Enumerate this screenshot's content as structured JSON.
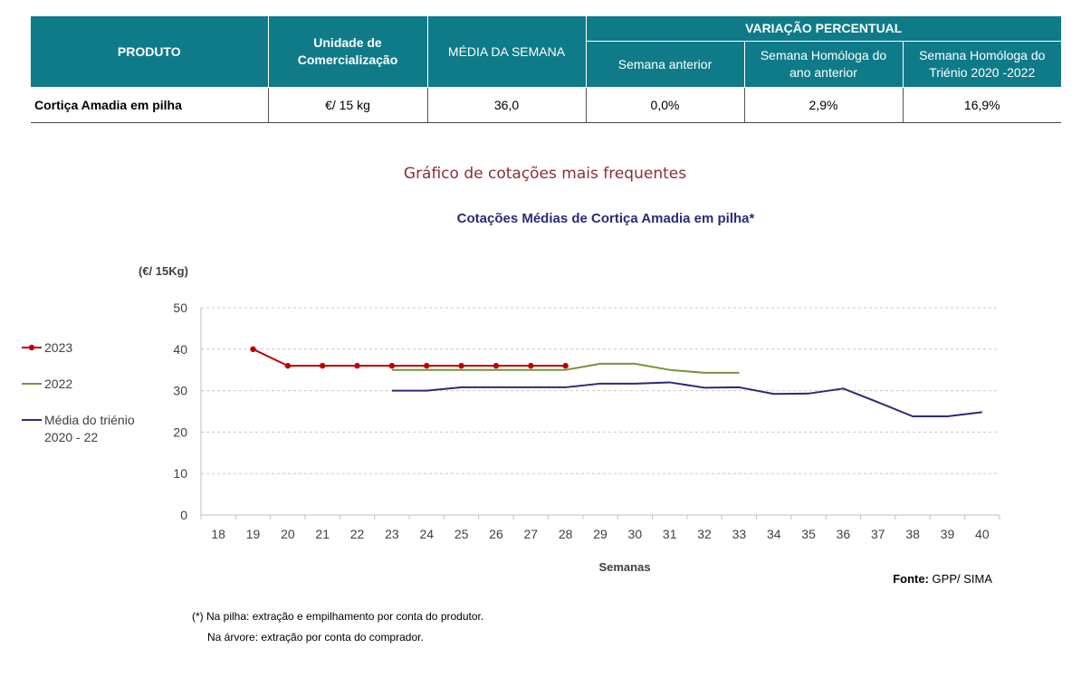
{
  "table": {
    "headers": {
      "produto": "PRODUTO",
      "unidade": "Unidade de Comercialização",
      "media": "MÉDIA DA SEMANA",
      "variacao": "VARIAÇÃO PERCENTUAL",
      "semana_anterior": "Semana anterior",
      "homologa_ano": "Semana Homóloga do ano anterior",
      "homologa_trienio": "Semana Homóloga do Triénio 2020 -2022"
    },
    "row": {
      "produto": "Cortiça Amadia em pilha",
      "unidade": "€/ 15 kg",
      "media": "36,0",
      "semana_anterior": "0,0%",
      "homologa_ano": "2,9%",
      "homologa_trienio": "16,9%"
    }
  },
  "section_title": "Gráfico de cotações mais frequentes",
  "chart_data": {
    "type": "line",
    "title": "Cotações Médias de Cortiça Amadia em pilha*",
    "ylabel": "(€/ 15Kg)",
    "xlabel": "Semanas",
    "ylim": [
      0,
      50
    ],
    "yticks": [
      0,
      10,
      20,
      30,
      40,
      50
    ],
    "xticks": [
      18,
      19,
      20,
      21,
      22,
      23,
      24,
      25,
      26,
      27,
      28,
      29,
      30,
      31,
      32,
      33,
      34,
      35,
      36,
      37,
      38,
      39,
      40
    ],
    "grid": true,
    "legend_position": "left",
    "series": [
      {
        "name": "2023",
        "color": "#c00000",
        "markers": true,
        "x": [
          19,
          20,
          21,
          22,
          23,
          24,
          25,
          26,
          27,
          28
        ],
        "y": [
          40,
          36,
          36,
          36,
          36,
          36,
          36,
          36,
          36,
          36
        ]
      },
      {
        "name": "2022",
        "color": "#76933c",
        "markers": false,
        "x": [
          23,
          24,
          25,
          26,
          27,
          28,
          29,
          30,
          31,
          32,
          33
        ],
        "y": [
          35,
          35,
          35,
          35,
          35,
          35,
          36.5,
          36.5,
          35,
          34.3,
          34.3
        ]
      },
      {
        "name": "Média do triénio 2020 - 22",
        "color": "#2b2a78",
        "markers": false,
        "x": [
          23,
          24,
          25,
          26,
          27,
          28,
          29,
          30,
          31,
          32,
          33,
          34,
          35,
          36,
          37,
          38,
          39,
          40
        ],
        "y": [
          30,
          30,
          30.8,
          30.8,
          30.8,
          30.8,
          31.7,
          31.7,
          32,
          30.7,
          30.8,
          29.2,
          29.3,
          30.5,
          27.2,
          23.8,
          23.8,
          24.8
        ]
      }
    ]
  },
  "source": {
    "label": "Fonte:",
    "value": "GPP/ SIMA"
  },
  "footnotes": [
    "(*) Na pilha: extração e empilhamento por conta do produtor.",
    "Na árvore: extração por conta do comprador."
  ]
}
